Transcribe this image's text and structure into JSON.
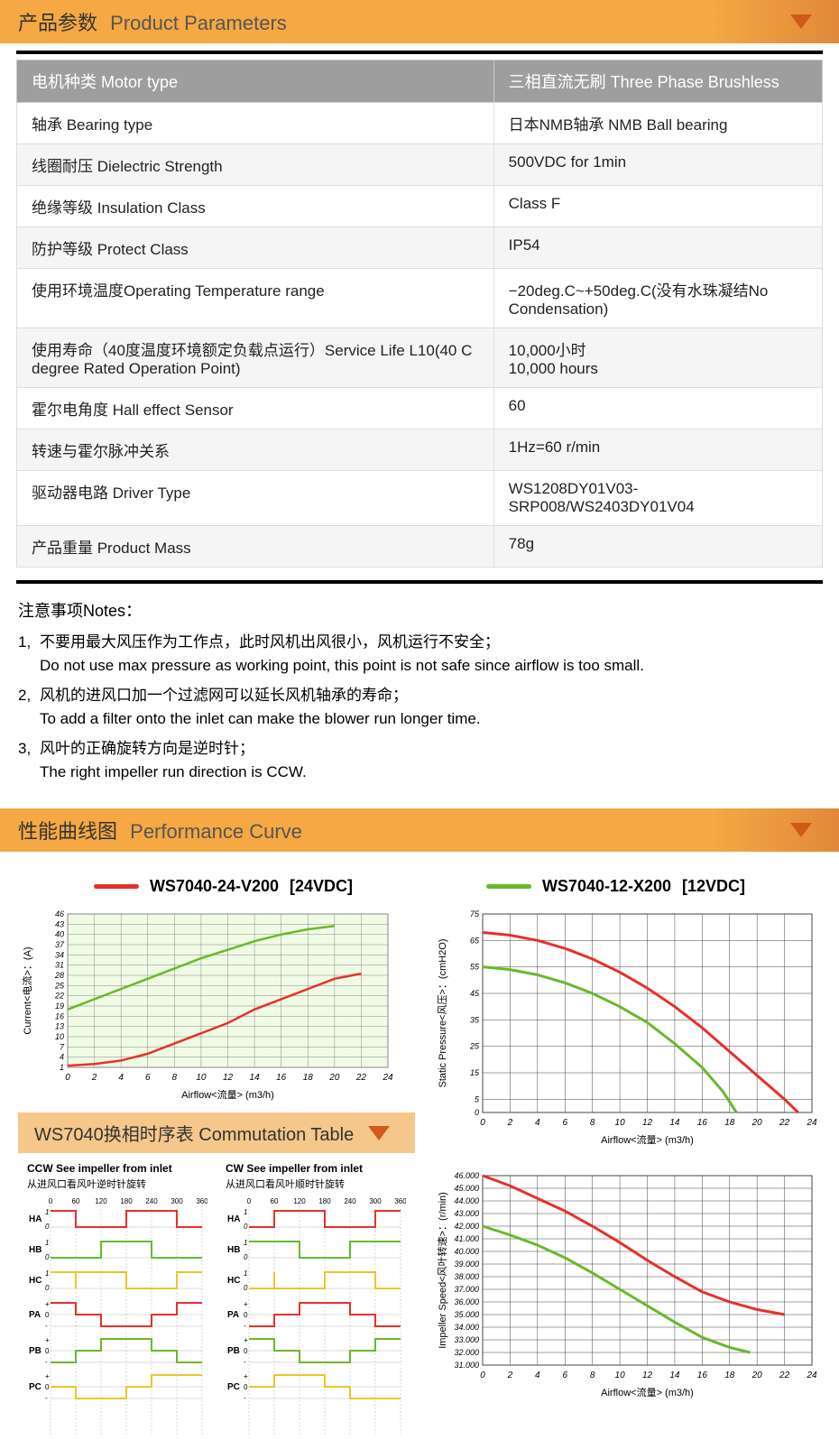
{
  "section1": {
    "title_cn": "产品参数",
    "title_en": "Product Parameters"
  },
  "params_table": {
    "header_left": "电机种类 Motor type",
    "header_right": "三相直流无刷 Three Phase Brushless",
    "rows": [
      {
        "l": "轴承 Bearing type",
        "r": "日本NMB轴承 NMB Ball bearing"
      },
      {
        "l": "线圈耐压 Dielectric Strength",
        "r": "500VDC for 1min"
      },
      {
        "l": "绝缘等级 Insulation Class",
        "r": "Class F"
      },
      {
        "l": "防护等级 Protect Class",
        "r": "IP54"
      },
      {
        "l": "使用环境温度Operating Temperature range",
        "r": "−20deg.C~+50deg.C(没有水珠凝结No Condensation)"
      },
      {
        "l": "使用寿命（40度温度环境额定负载点运行）Service Life L10(40 C degree Rated Operation Point)",
        "r": "10,000小时\n10,000 hours"
      },
      {
        "l": "霍尔电角度 Hall effect Sensor",
        "r": "60"
      },
      {
        "l": "转速与霍尔脉冲关系",
        "r": "1Hz=60 r/min"
      },
      {
        "l": "驱动器电路 Driver Type",
        "r": "WS1208DY01V03-SRP008/WS2403DY01V04"
      },
      {
        "l": "产品重量 Product Mass",
        "r": "78g"
      }
    ]
  },
  "notes": {
    "title": "注意事项Notes：",
    "items": [
      {
        "cn": "不要用最大风压作为工作点，此时风机出风很小，风机运行不安全；",
        "en": "Do not use max pressure as working point, this point is not safe since airflow is  too small."
      },
      {
        "cn": "风机的进风口加一个过滤网可以延长风机轴承的寿命；",
        "en": "To add a filter onto the inlet can make the blower run longer time."
      },
      {
        "cn": "风叶的正确旋转方向是逆时针；",
        "en": "The right impeller run direction is CCW."
      }
    ]
  },
  "section2": {
    "title_cn": "性能曲线图",
    "title_en": "Performance Curve"
  },
  "legend": {
    "red": {
      "color": "#e8302a",
      "label": "WS7040-24-V200",
      "volt": "[24VDC]"
    },
    "green": {
      "color": "#6bb82a",
      "label": "WS7040-12-X200",
      "volt": "[12VDC]"
    }
  },
  "chart_current": {
    "xlabel": "Airflow<流量> (m3/h)",
    "ylabel": "Current<电流>：(A)",
    "xlim": [
      0,
      24
    ],
    "xtick_step": 2,
    "ylim": [
      1,
      46
    ],
    "yticks": [
      1,
      4,
      7,
      10,
      13,
      16,
      19,
      22,
      25,
      28,
      31,
      34,
      37,
      40,
      43,
      46
    ],
    "bg": "#f0fbe5",
    "grid_color": "#888",
    "series": [
      {
        "color": "#e8302a",
        "width": 2.5,
        "data": [
          [
            0,
            1.5
          ],
          [
            2,
            2
          ],
          [
            4,
            3
          ],
          [
            6,
            5
          ],
          [
            8,
            8
          ],
          [
            10,
            11
          ],
          [
            12,
            14
          ],
          [
            14,
            18
          ],
          [
            16,
            21
          ],
          [
            18,
            24
          ],
          [
            20,
            27
          ],
          [
            22,
            28.5
          ]
        ]
      },
      {
        "color": "#6bb82a",
        "width": 2.5,
        "data": [
          [
            0,
            18
          ],
          [
            2,
            21
          ],
          [
            4,
            24
          ],
          [
            6,
            27
          ],
          [
            8,
            30
          ],
          [
            10,
            33
          ],
          [
            12,
            35.5
          ],
          [
            14,
            38
          ],
          [
            16,
            40
          ],
          [
            18,
            41.5
          ],
          [
            20,
            42.5
          ]
        ]
      }
    ]
  },
  "chart_pressure": {
    "xlabel": "Airflow<流量> (m3/h)",
    "ylabel": "Static Pressure<风压>：(cmH2O)",
    "xlim": [
      0,
      24
    ],
    "xtick_step": 2,
    "ylim": [
      0,
      75
    ],
    "yticks": [
      0,
      5,
      15,
      25,
      35,
      45,
      55,
      65,
      75
    ],
    "bg": "#ffffff",
    "grid_color": "#444",
    "series": [
      {
        "color": "#e8302a",
        "width": 3,
        "data": [
          [
            0,
            68
          ],
          [
            2,
            67
          ],
          [
            4,
            65
          ],
          [
            6,
            62
          ],
          [
            8,
            58
          ],
          [
            10,
            53
          ],
          [
            12,
            47
          ],
          [
            14,
            40
          ],
          [
            16,
            32
          ],
          [
            18,
            23
          ],
          [
            20,
            14
          ],
          [
            22,
            5
          ],
          [
            23,
            0
          ]
        ]
      },
      {
        "color": "#6bb82a",
        "width": 3,
        "data": [
          [
            0,
            55
          ],
          [
            2,
            54
          ],
          [
            4,
            52
          ],
          [
            6,
            49
          ],
          [
            8,
            45
          ],
          [
            10,
            40
          ],
          [
            12,
            34
          ],
          [
            14,
            26
          ],
          [
            16,
            17
          ],
          [
            17.5,
            8
          ],
          [
            18.5,
            0
          ]
        ]
      }
    ]
  },
  "chart_speed": {
    "xlabel": "Airflow<流量> (m3/h)",
    "ylabel": "Impeller Speed<风叶转速>：(r/min)",
    "xlim": [
      0,
      24
    ],
    "xtick_step": 2,
    "ylim": [
      31000,
      46000
    ],
    "ytick_step": 1000,
    "bg": "#ffffff",
    "grid_color": "#444",
    "series": [
      {
        "color": "#e8302a",
        "width": 3,
        "data": [
          [
            0,
            46000
          ],
          [
            2,
            45200
          ],
          [
            4,
            44200
          ],
          [
            6,
            43200
          ],
          [
            8,
            42000
          ],
          [
            10,
            40700
          ],
          [
            12,
            39300
          ],
          [
            14,
            38000
          ],
          [
            16,
            36800
          ],
          [
            18,
            36000
          ],
          [
            20,
            35400
          ],
          [
            22,
            35000
          ]
        ]
      },
      {
        "color": "#6bb82a",
        "width": 3,
        "data": [
          [
            0,
            42000
          ],
          [
            2,
            41300
          ],
          [
            4,
            40500
          ],
          [
            6,
            39500
          ],
          [
            8,
            38300
          ],
          [
            10,
            37000
          ],
          [
            12,
            35700
          ],
          [
            14,
            34400
          ],
          [
            16,
            33200
          ],
          [
            18,
            32400
          ],
          [
            19.5,
            32000
          ]
        ]
      }
    ]
  },
  "section3": {
    "title": "WS7040换相时序表 Commutation Table"
  },
  "commutation": {
    "ccw": {
      "title": "CCW See impeller from inlet",
      "subtitle": "从进风口看风叶逆时针旋转"
    },
    "cw": {
      "title": "CW See impeller from inlet",
      "subtitle": "从进风口看风叶顺时针旋转"
    },
    "x_ticks": [
      0,
      60,
      120,
      180,
      240,
      300,
      360
    ],
    "signals": [
      "HA",
      "HB",
      "HC",
      "PA",
      "PB",
      "PC"
    ],
    "hall_levels": [
      "1",
      "0"
    ],
    "phase_levels": [
      "+",
      "0",
      "-"
    ],
    "ccw_patterns": {
      "HA": {
        "color": "#e8302a",
        "segs": [
          [
            0,
            1
          ],
          [
            60,
            1
          ],
          [
            60,
            0
          ],
          [
            180,
            0
          ],
          [
            180,
            1
          ],
          [
            300,
            1
          ],
          [
            300,
            0
          ],
          [
            360,
            0
          ]
        ]
      },
      "HB": {
        "color": "#6bb82a",
        "segs": [
          [
            0,
            0
          ],
          [
            120,
            0
          ],
          [
            120,
            1
          ],
          [
            240,
            1
          ],
          [
            240,
            0
          ],
          [
            360,
            0
          ]
        ]
      },
      "HC": {
        "color": "#e8c82a",
        "segs": [
          [
            0,
            1
          ],
          [
            60,
            1
          ],
          [
            60,
            0
          ],
          [
            60,
            0
          ],
          [
            60,
            1
          ],
          [
            180,
            1
          ],
          [
            180,
            0
          ],
          [
            300,
            0
          ],
          [
            300,
            1
          ],
          [
            360,
            1
          ]
        ]
      },
      "PA": {
        "color": "#e8302a",
        "segs": [
          [
            0,
            1
          ],
          [
            60,
            1
          ],
          [
            60,
            0
          ],
          [
            120,
            0
          ],
          [
            120,
            -1
          ],
          [
            240,
            -1
          ],
          [
            240,
            0
          ],
          [
            300,
            0
          ],
          [
            300,
            1
          ],
          [
            360,
            1
          ]
        ]
      },
      "PB": {
        "color": "#6bb82a",
        "segs": [
          [
            0,
            -1
          ],
          [
            60,
            -1
          ],
          [
            60,
            0
          ],
          [
            120,
            0
          ],
          [
            120,
            1
          ],
          [
            240,
            1
          ],
          [
            240,
            0
          ],
          [
            300,
            0
          ],
          [
            300,
            -1
          ],
          [
            360,
            -1
          ]
        ]
      },
      "PC": {
        "color": "#e8c82a",
        "segs": [
          [
            0,
            0
          ],
          [
            60,
            0
          ],
          [
            60,
            -1
          ],
          [
            180,
            -1
          ],
          [
            180,
            0
          ],
          [
            240,
            0
          ],
          [
            240,
            1
          ],
          [
            360,
            1
          ]
        ]
      }
    },
    "cw_patterns": {
      "HA": {
        "color": "#e8302a",
        "segs": [
          [
            0,
            0
          ],
          [
            60,
            0
          ],
          [
            60,
            1
          ],
          [
            180,
            1
          ],
          [
            180,
            0
          ],
          [
            300,
            0
          ],
          [
            300,
            1
          ],
          [
            360,
            1
          ]
        ]
      },
      "HB": {
        "color": "#6bb82a",
        "segs": [
          [
            0,
            1
          ],
          [
            120,
            1
          ],
          [
            120,
            0
          ],
          [
            240,
            0
          ],
          [
            240,
            1
          ],
          [
            360,
            1
          ]
        ]
      },
      "HC": {
        "color": "#e8c82a",
        "segs": [
          [
            0,
            0
          ],
          [
            60,
            0
          ],
          [
            60,
            1
          ],
          [
            60,
            1
          ],
          [
            60,
            0
          ],
          [
            180,
            0
          ],
          [
            180,
            1
          ],
          [
            300,
            1
          ],
          [
            300,
            0
          ],
          [
            360,
            0
          ]
        ]
      },
      "PA": {
        "color": "#e8302a",
        "segs": [
          [
            0,
            -1
          ],
          [
            60,
            -1
          ],
          [
            60,
            0
          ],
          [
            120,
            0
          ],
          [
            120,
            1
          ],
          [
            240,
            1
          ],
          [
            240,
            0
          ],
          [
            300,
            0
          ],
          [
            300,
            -1
          ],
          [
            360,
            -1
          ]
        ]
      },
      "PB": {
        "color": "#6bb82a",
        "segs": [
          [
            0,
            1
          ],
          [
            60,
            1
          ],
          [
            60,
            0
          ],
          [
            120,
            0
          ],
          [
            120,
            -1
          ],
          [
            240,
            -1
          ],
          [
            240,
            0
          ],
          [
            300,
            0
          ],
          [
            300,
            1
          ],
          [
            360,
            1
          ]
        ]
      },
      "PC": {
        "color": "#e8c82a",
        "segs": [
          [
            0,
            0
          ],
          [
            60,
            0
          ],
          [
            60,
            1
          ],
          [
            180,
            1
          ],
          [
            180,
            0
          ],
          [
            240,
            0
          ],
          [
            240,
            -1
          ],
          [
            360,
            -1
          ]
        ]
      }
    }
  }
}
